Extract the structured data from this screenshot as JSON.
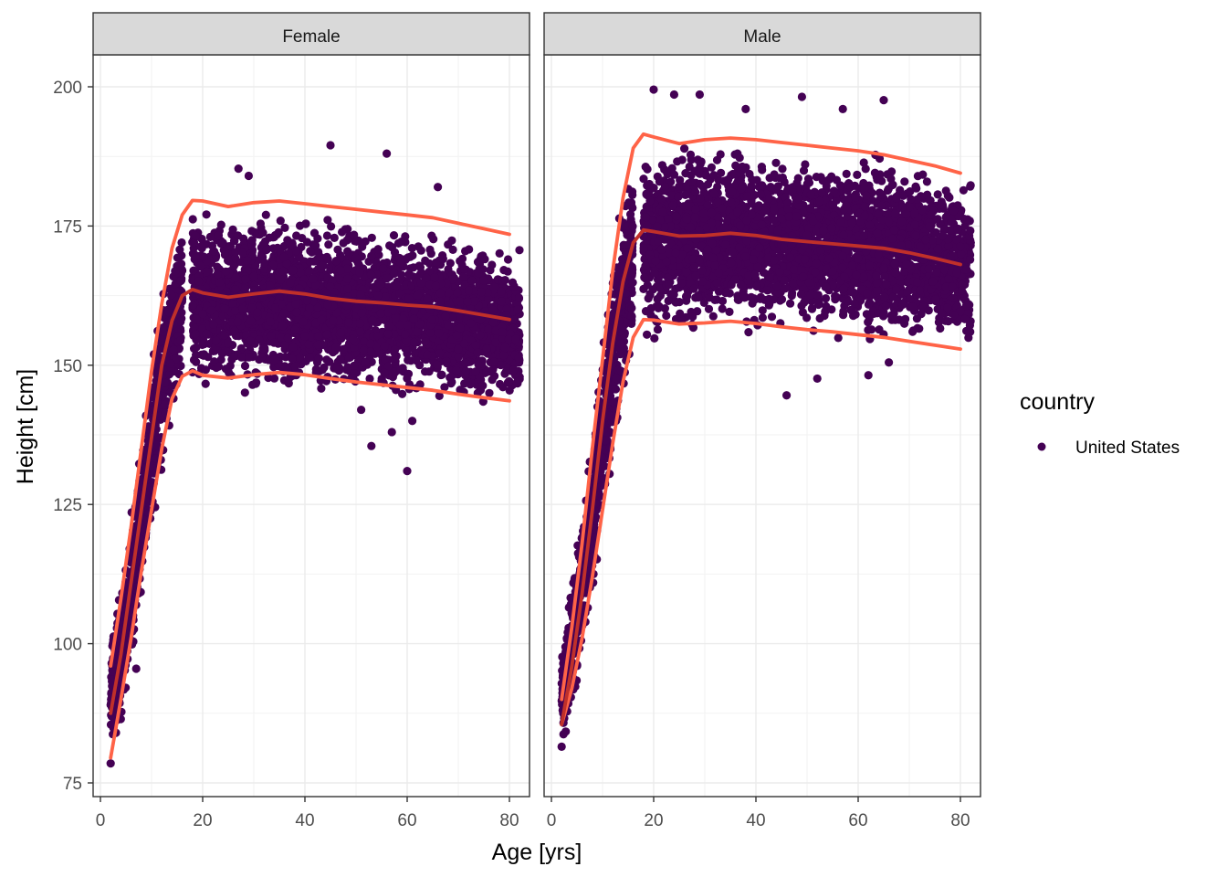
{
  "chart_data": {
    "type": "scatter",
    "facet_variable": "sex",
    "facets": [
      "Female",
      "Male"
    ],
    "xlabel": "Age [yrs]",
    "ylabel": "Height [cm]",
    "xlim": [
      2,
      80
    ],
    "ylim": [
      75,
      200
    ],
    "x_ticks": [
      0,
      20,
      40,
      60,
      80
    ],
    "y_ticks": [
      75,
      100,
      125,
      150,
      175,
      200
    ],
    "grid": true,
    "legend": {
      "title": "country",
      "position": "right",
      "entries": [
        {
          "label": "United States",
          "color": "#440154"
        }
      ]
    },
    "point_color": "#440154",
    "centile_colors": {
      "outer": "#FF6347",
      "median": "#C0302A"
    },
    "panels": [
      {
        "name": "Female",
        "scatter_band": {
          "age": [
            2,
            4,
            6,
            8,
            10,
            12,
            14,
            16,
            18,
            20,
            25,
            30,
            35,
            40,
            45,
            50,
            55,
            60,
            65,
            70,
            75,
            80
          ],
          "lower": [
            79,
            84,
            93,
            106,
            118,
            130,
            140,
            145,
            146,
            144,
            143,
            144,
            144,
            144,
            144,
            143,
            143,
            142,
            142,
            141,
            141,
            140
          ],
          "upper": [
            101,
            112,
            125,
            138,
            152,
            165,
            173,
            178,
            180,
            179,
            179,
            179,
            179,
            178,
            178,
            177,
            177,
            176,
            175,
            174,
            173,
            173
          ]
        },
        "outliers": [
          {
            "x": 45,
            "y": 189.5
          },
          {
            "x": 56,
            "y": 188
          },
          {
            "x": 60,
            "y": 131
          },
          {
            "x": 53,
            "y": 135.5
          },
          {
            "x": 27,
            "y": 185.3
          },
          {
            "x": 29,
            "y": 184
          },
          {
            "x": 66,
            "y": 182
          },
          {
            "x": 7,
            "y": 95.5
          },
          {
            "x": 2,
            "y": 78.5
          },
          {
            "x": 57,
            "y": 138
          },
          {
            "x": 61,
            "y": 140
          },
          {
            "x": 51,
            "y": 142
          }
        ],
        "centiles": {
          "age": [
            2,
            4,
            6,
            8,
            10,
            12,
            14,
            16,
            18,
            20,
            25,
            30,
            35,
            40,
            45,
            50,
            55,
            60,
            65,
            70,
            75,
            80
          ],
          "p95": [
            96,
            108,
            121,
            135,
            149,
            161,
            171,
            177,
            179.6,
            179.5,
            178.5,
            179.2,
            179.5,
            179,
            178.5,
            178,
            177.5,
            177,
            176.5,
            175.5,
            174.5,
            173.5
          ],
          "p50": [
            87.5,
            98,
            111,
            124,
            137,
            150,
            158,
            162.5,
            163.6,
            163,
            162.2,
            162.8,
            163.3,
            162.8,
            162,
            161.5,
            161.2,
            160.8,
            160.5,
            159.8,
            159,
            158.2
          ],
          "p5": [
            79.5,
            90,
            101,
            113,
            124,
            135,
            144,
            148,
            149,
            148.2,
            147.7,
            148.3,
            148.7,
            148.3,
            147.6,
            147,
            146.5,
            146,
            145.5,
            144.8,
            144.2,
            143.6
          ]
        }
      },
      {
        "name": "Male",
        "scatter_band": {
          "age": [
            2,
            4,
            6,
            8,
            10,
            12,
            14,
            16,
            18,
            20,
            25,
            30,
            35,
            40,
            45,
            50,
            55,
            60,
            65,
            70,
            75,
            80
          ],
          "lower": [
            81,
            86,
            95,
            107,
            120,
            132,
            142,
            149,
            152,
            152,
            153,
            154,
            155,
            155,
            155,
            154,
            154,
            153,
            153,
            152,
            152,
            151
          ],
          "upper": [
            102,
            113,
            126,
            140,
            156,
            170,
            182,
            189,
            192,
            192,
            191,
            191,
            191,
            191,
            190,
            190,
            189,
            189,
            188,
            187,
            186,
            185
          ]
        },
        "outliers": [
          {
            "x": 20,
            "y": 199.5
          },
          {
            "x": 24,
            "y": 198.6
          },
          {
            "x": 29,
            "y": 198.6
          },
          {
            "x": 49,
            "y": 198.2
          },
          {
            "x": 65,
            "y": 197.6
          },
          {
            "x": 57,
            "y": 196
          },
          {
            "x": 46,
            "y": 144.6
          },
          {
            "x": 52,
            "y": 147.6
          },
          {
            "x": 62,
            "y": 148.2
          },
          {
            "x": 66,
            "y": 150.5
          },
          {
            "x": 2,
            "y": 81.5
          },
          {
            "x": 38,
            "y": 196
          }
        ],
        "centiles": {
          "age": [
            2,
            4,
            6,
            8,
            10,
            12,
            14,
            16,
            18,
            20,
            25,
            30,
            35,
            40,
            45,
            50,
            55,
            60,
            65,
            70,
            75,
            80
          ],
          "p95": [
            90,
            103,
            118,
            135,
            151,
            167,
            180,
            189,
            191.5,
            191,
            189.8,
            190.5,
            190.8,
            190.5,
            190,
            189.5,
            189,
            188.5,
            187.8,
            186.8,
            185.8,
            184.5
          ],
          "p50": [
            85.5,
            96,
            109,
            124,
            140,
            154,
            165,
            172,
            174.3,
            174,
            173.2,
            173.3,
            173.7,
            173.3,
            172.6,
            172.2,
            171.8,
            171.4,
            171,
            170.2,
            169.2,
            168.1
          ],
          "p5": [
            85.5,
            92,
            101,
            112,
            124,
            136,
            147,
            155,
            158.2,
            158.1,
            157.4,
            157.6,
            157.9,
            157.5,
            156.9,
            156.4,
            156,
            155.5,
            155,
            154.3,
            153.6,
            152.9
          ]
        }
      }
    ]
  }
}
